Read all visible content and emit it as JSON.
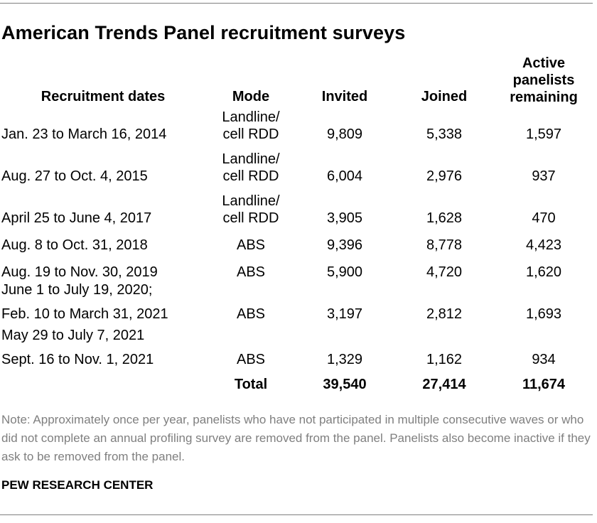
{
  "title": "American Trends Panel recruitment surveys",
  "headers": {
    "dates": "Recruitment dates",
    "mode": "Mode",
    "invited": "Invited",
    "joined": "Joined",
    "active": "Active panelists remaining"
  },
  "rows": [
    {
      "dates": [
        "Jan. 23 to March 16, 2014"
      ],
      "mode": [
        "Landline/",
        "cell RDD"
      ],
      "invited": "9,809",
      "joined": "5,338",
      "active": "1,597"
    },
    {
      "dates": [
        "Aug. 27 to Oct. 4, 2015"
      ],
      "mode": [
        "Landline/",
        "cell RDD"
      ],
      "invited": "6,004",
      "joined": "2,976",
      "active": "937"
    },
    {
      "dates": [
        "April 25 to June 4, 2017"
      ],
      "mode": [
        "Landline/",
        "cell RDD"
      ],
      "invited": "3,905",
      "joined": "1,628",
      "active": "470"
    },
    {
      "dates": [
        "Aug. 8 to Oct. 31, 2018"
      ],
      "mode": [
        "ABS"
      ],
      "invited": "9,396",
      "joined": "8,778",
      "active": "4,423"
    },
    {
      "dates": [
        "Aug. 19 to Nov. 30, 2019"
      ],
      "mode": [
        "ABS"
      ],
      "invited": "5,900",
      "joined": "4,720",
      "active": "1,620"
    },
    {
      "dates": [
        "June 1 to July 19, 2020;",
        "Feb. 10 to March 31, 2021"
      ],
      "mode": [
        "ABS"
      ],
      "invited": "3,197",
      "joined": "2,812",
      "active": "1,693"
    },
    {
      "dates": [
        "May 29 to July 7, 2021",
        "Sept. 16 to Nov. 1, 2021"
      ],
      "mode": [
        "ABS"
      ],
      "invited": "1,329",
      "joined": "1,162",
      "active": "934"
    }
  ],
  "total": {
    "label": "Total",
    "invited": "39,540",
    "joined": "27,414",
    "active": "11,674"
  },
  "note": "Note: Approximately once per year, panelists who have not participated in multiple consecutive waves or who did not complete an annual profiling survey are removed from the panel. Panelists also become inactive if they ask to be removed from the panel.",
  "source": "PEW RESEARCH CENTER",
  "chart_data": {
    "type": "table",
    "title": "American Trends Panel recruitment surveys",
    "columns": [
      "Recruitment dates",
      "Mode",
      "Invited",
      "Joined",
      "Active panelists remaining"
    ],
    "rows": [
      [
        "Jan. 23 to March 16, 2014",
        "Landline/cell RDD",
        9809,
        5338,
        1597
      ],
      [
        "Aug. 27 to Oct. 4, 2015",
        "Landline/cell RDD",
        6004,
        2976,
        937
      ],
      [
        "April 25 to June 4, 2017",
        "Landline/cell RDD",
        3905,
        1628,
        470
      ],
      [
        "Aug. 8 to Oct. 31, 2018",
        "ABS",
        9396,
        8778,
        4423
      ],
      [
        "Aug. 19 to Nov. 30, 2019",
        "ABS",
        5900,
        4720,
        1620
      ],
      [
        "June 1 to July 19, 2020; Feb. 10 to March 31, 2021",
        "ABS",
        3197,
        2812,
        1693
      ],
      [
        "May 29 to July 7, 2021 Sept. 16 to Nov. 1, 2021",
        "ABS",
        1329,
        1162,
        934
      ]
    ],
    "total": [
      "Total",
      39540,
      27414,
      11674
    ]
  }
}
